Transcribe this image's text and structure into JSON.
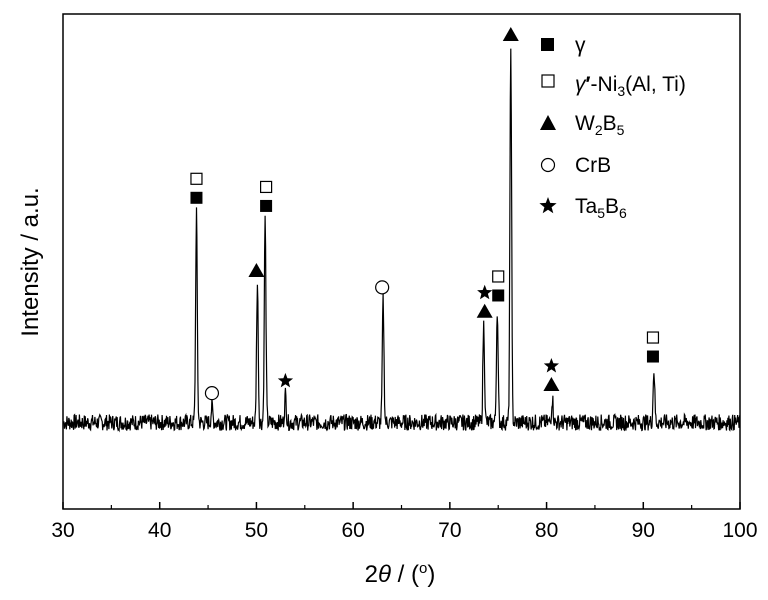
{
  "chart_data": {
    "type": "line",
    "title": "",
    "xlabel": "2θ / (°)",
    "ylabel": "Intensity / a.u.",
    "xlim": [
      30,
      100
    ],
    "x_ticks": [
      30,
      40,
      50,
      60,
      70,
      80,
      90,
      100
    ],
    "y_ticks": [],
    "grid": false,
    "legend_position": "top-right",
    "legend": [
      {
        "marker": "filled-square",
        "label": "γ"
      },
      {
        "marker": "open-square",
        "label": "γ′-Ni3(Al, Ti)"
      },
      {
        "marker": "filled-triangle",
        "label": "W2B5"
      },
      {
        "marker": "open-circle",
        "label": "CrB"
      },
      {
        "marker": "filled-star",
        "label": "Ta5B6"
      }
    ],
    "series": [
      {
        "baseline": 8,
        "noise": 2,
        "peaks": [
          {
            "x": 43.8,
            "y": 60
          },
          {
            "x": 45.4,
            "y": 12
          },
          {
            "x": 50.1,
            "y": 42
          },
          {
            "x": 50.9,
            "y": 58
          },
          {
            "x": 53.0,
            "y": 15
          },
          {
            "x": 63.1,
            "y": 38
          },
          {
            "x": 73.5,
            "y": 32
          },
          {
            "x": 74.9,
            "y": 36
          },
          {
            "x": 76.3,
            "y": 100
          },
          {
            "x": 80.6,
            "y": 14
          },
          {
            "x": 91.1,
            "y": 21
          }
        ]
      }
    ],
    "phase_markers": [
      {
        "x": 43.8,
        "markers": [
          "filled-square",
          "open-square"
        ]
      },
      {
        "x": 45.4,
        "markers": [
          "open-circle"
        ]
      },
      {
        "x": 50.0,
        "markers": [
          "filled-triangle"
        ]
      },
      {
        "x": 51.0,
        "markers": [
          "filled-square",
          "open-square"
        ]
      },
      {
        "x": 53.0,
        "markers": [
          "filled-star"
        ]
      },
      {
        "x": 63.0,
        "markers": [
          "open-circle"
        ]
      },
      {
        "x": 73.6,
        "markers": [
          "filled-triangle",
          "filled-star"
        ]
      },
      {
        "x": 75.0,
        "markers": [
          "filled-square",
          "open-square"
        ]
      },
      {
        "x": 76.3,
        "markers": [
          "filled-triangle"
        ]
      },
      {
        "x": 80.5,
        "markers": [
          "filled-triangle",
          "filled-star"
        ]
      },
      {
        "x": 91.0,
        "markers": [
          "filled-square",
          "open-square"
        ]
      }
    ]
  }
}
